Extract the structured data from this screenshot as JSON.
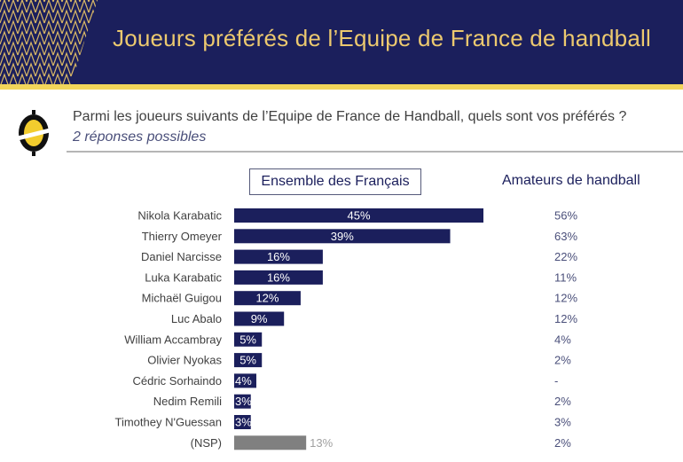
{
  "header": {
    "title": "Joueurs préférés de l’Equipe de France de handball"
  },
  "question": {
    "text": "Parmi les joueurs suivants de l’Equipe de France de Handball, quels sont vos préférés ?",
    "subtitle": "2 réponses possibles"
  },
  "icons": {
    "logo": "yellow-oval-logo-icon",
    "pattern": "chevron-pattern"
  },
  "colors": {
    "header_bg": "#1b1f5c",
    "title_text": "#ecc96f",
    "accent_stripe": "#f2d55a",
    "bar_primary": "#1b1f5c",
    "bar_nsp": "#808080"
  },
  "chart_data": {
    "type": "bar",
    "orientation": "horizontal",
    "title": "Ensemble des Français",
    "secondary_column_title": "Amateurs de handball",
    "xlim": [
      0,
      45
    ],
    "grid": false,
    "categories": [
      "Nikola Karabatic",
      "Thierry Omeyer",
      "Daniel Narcisse",
      "Luka Karabatic",
      "Michaël Guigou",
      "Luc Abalo",
      "William Accambray",
      "Olivier Nyokas",
      "Cédric Sorhaindo",
      "Nedim Remili",
      "Timothey N'Guessan",
      "(NSP)"
    ],
    "series": [
      {
        "name": "Ensemble des Français",
        "values": [
          45,
          39,
          16,
          16,
          12,
          9,
          5,
          5,
          4,
          3,
          3,
          13
        ],
        "labels": [
          "45%",
          "39%",
          "16%",
          "16%",
          "12%",
          "9%",
          "5%",
          "5%",
          "4%",
          "3%",
          "3%",
          "13%"
        ]
      },
      {
        "name": "Amateurs de handball",
        "values": [
          56,
          63,
          22,
          11,
          12,
          12,
          4,
          2,
          null,
          2,
          3,
          2
        ],
        "labels": [
          "56%",
          "63%",
          "22%",
          "11%",
          "12%",
          "12%",
          "4%",
          "2%",
          "-",
          "2%",
          "3%",
          "2%"
        ]
      }
    ],
    "highlight_category": "(NSP)"
  }
}
